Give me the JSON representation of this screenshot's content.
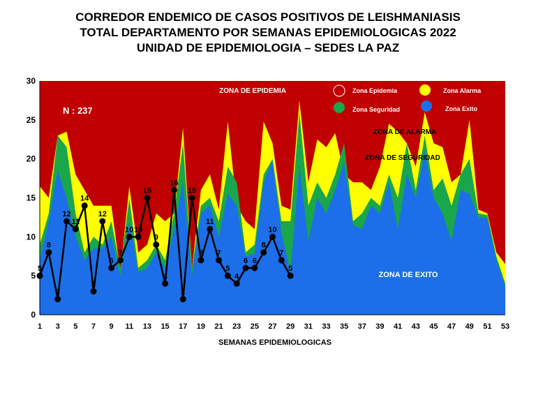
{
  "title_lines": [
    "CORREDOR ENDEMICO DE CASOS POSITIVOS DE LEISHMANIASIS",
    "TOTAL DEPARTAMENTO POR SEMANAS EPIDEMIOLOGICAS 2022",
    "UNIDAD DE EPIDEMIOLOGIA – SEDES LA PAZ"
  ],
  "chart_data": {
    "type": "area",
    "xlabel": "SEMANAS EPIDEMIOLOGICAS",
    "ylabel": "",
    "ylim": [
      0,
      30
    ],
    "yticks": [
      0,
      5,
      10,
      15,
      20,
      25,
      30
    ],
    "xticks": [
      1,
      3,
      5,
      7,
      9,
      11,
      13,
      15,
      17,
      19,
      21,
      23,
      25,
      27,
      29,
      31,
      33,
      35,
      37,
      39,
      41,
      43,
      45,
      47,
      49,
      51,
      53
    ],
    "grid": false,
    "legend_position": "top-right",
    "annotation_n": "N : 237",
    "zone_labels": {
      "epidemia": "ZONA DE EPIDEMIA",
      "alarma": "ZONA DE ALARMA",
      "seguridad": "ZONA DE  SEGURIDAD",
      "exito": "ZONA DE  EXITO"
    },
    "legend": [
      {
        "name": "Zona Epidemia",
        "color": "#c00000"
      },
      {
        "name": "Zona Alarma",
        "color": "#ffff00"
      },
      {
        "name": "Zona Seguridad",
        "color": "#1aa64b"
      },
      {
        "name": "Zona Exito",
        "color": "#1c6fe8"
      }
    ],
    "colors": {
      "epidemia": "#c00000",
      "alarma": "#ffff00",
      "seguridad": "#1aa64b",
      "exito": "#1c6fe8",
      "cases_line": "#000000"
    },
    "weeks": [
      1,
      2,
      3,
      4,
      5,
      6,
      7,
      8,
      9,
      10,
      11,
      12,
      13,
      14,
      15,
      16,
      17,
      18,
      19,
      20,
      21,
      22,
      23,
      24,
      25,
      26,
      27,
      28,
      29,
      30,
      31,
      32,
      33,
      34,
      35,
      36,
      37,
      38,
      39,
      40,
      41,
      42,
      43,
      44,
      45,
      46,
      47,
      48,
      49,
      50,
      51,
      52,
      53
    ],
    "zone_exito": [
      7,
      12,
      18.5,
      15,
      10,
      7,
      8.5,
      8.5,
      10,
      5,
      12,
      5.5,
      6,
      8,
      6,
      11,
      17,
      5,
      13,
      14,
      10,
      15.5,
      14,
      7.5,
      7.8,
      17,
      19.8,
      10.5,
      5.5,
      19,
      9.5,
      15,
      13,
      16,
      19.5,
      11.5,
      11,
      14,
      13,
      17,
      11,
      18,
      15,
      21,
      15,
      13,
      9.5,
      16,
      15.5,
      12.5,
      12.4,
      7,
      3.6
    ],
    "zone_seguridad": [
      9,
      13,
      23,
      21.5,
      13,
      8,
      10,
      9,
      12,
      6,
      15,
      6,
      7,
      9,
      7,
      13,
      22,
      6,
      14,
      15,
      12,
      19,
      17,
      8,
      9,
      18,
      20,
      12,
      12,
      26,
      14,
      17,
      15,
      18,
      22,
      12,
      13,
      15,
      14,
      18,
      15,
      22,
      16,
      23,
      16,
      17.5,
      14,
      18,
      20,
      13,
      12.8,
      7.5,
      4
    ],
    "zone_alarma": [
      16.5,
      15,
      23,
      23.5,
      18,
      16,
      14,
      14,
      14,
      5.5,
      16.5,
      8,
      9,
      13,
      12,
      13,
      24,
      6,
      16,
      18,
      13.5,
      24.8,
      14,
      12,
      11,
      24.8,
      22,
      14,
      13.5,
      27.5,
      17,
      22.5,
      21.5,
      23.3,
      18,
      17,
      17,
      16,
      19,
      24.5,
      23.5,
      22,
      19,
      26,
      22,
      21.5,
      17,
      18,
      25,
      13.5,
      13,
      8,
      6.5
    ],
    "cases_weeks": [
      1,
      2,
      3,
      4,
      5,
      6,
      7,
      8,
      9,
      10,
      11,
      12,
      13,
      14,
      15,
      16,
      17,
      18,
      19,
      20,
      21,
      22,
      23,
      24,
      25,
      26,
      27,
      28,
      29
    ],
    "cases": [
      5,
      8,
      2,
      12,
      11,
      14,
      3,
      12,
      6,
      7,
      10,
      10,
      15,
      9,
      4,
      16,
      2,
      15,
      7,
      11,
      7,
      5,
      4,
      6,
      6,
      8,
      10,
      7,
      5
    ]
  }
}
